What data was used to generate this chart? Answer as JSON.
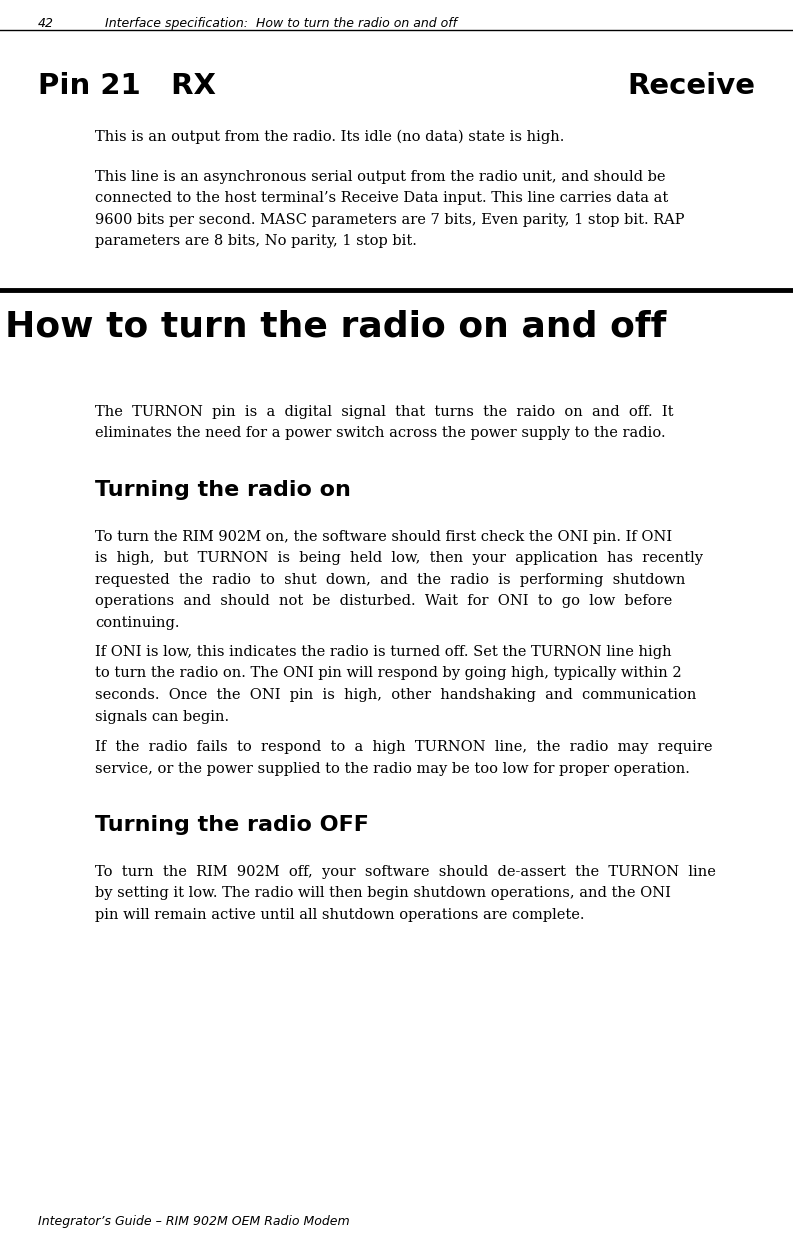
{
  "page_width": 7.93,
  "page_height": 12.55,
  "bg_color": "#ffffff",
  "footer_text": "Integrator’s Guide – RIM 902M OEM Radio Modem",
  "para1": "This is an output from the radio. Its idle (no data) state is high.",
  "p2_lines": [
    "This line is an asynchronous serial output from the radio unit, and should be",
    "connected to the host terminal’s Receive Data input. This line carries data at",
    "9600 bits per second. MASC parameters are 7 bits, Even parity, 1 stop bit. RAP",
    "parameters are 8 bits, No parity, 1 stop bit."
  ],
  "section_title": "How to turn the radio on and off",
  "intro_lines": [
    "The  TURNON  pin  is  a  digital  signal  that  turns  the  raido  on  and  off.  It",
    "eliminates the need for a power switch across the power supply to the radio."
  ],
  "sub1_title": "Turning the radio on",
  "s1p1_lines": [
    "To turn the RIM 902M on, the software should first check the ONI pin. If ONI",
    "is  high,  but  TURNON  is  being  held  low,  then  your  application  has  recently",
    "requested  the  radio  to  shut  down,  and  the  radio  is  performing  shutdown",
    "operations  and  should  not  be  disturbed.  Wait  for  ONI  to  go  low  before",
    "continuing."
  ],
  "s1p2_lines": [
    "If ONI is low, this indicates the radio is turned off. Set the TURNON line high",
    "to turn the radio on. The ONI pin will respond by going high, typically within 2",
    "seconds.  Once  the  ONI  pin  is  high,  other  handshaking  and  communication",
    "signals can begin."
  ],
  "s1p3_lines": [
    "If  the  radio  fails  to  respond  to  a  high  TURNON  line,  the  radio  may  require",
    "service, or the power supplied to the radio may be too low for proper operation."
  ],
  "sub2_title": "Turning the radio OFF",
  "s2p1_lines": [
    "To  turn  the  RIM  902M  off,  your  software  should  de-assert  the  TURNON  line",
    "by setting it low. The radio will then begin shutdown operations, and the ONI",
    "pin will remain active until all shutdown operations are complete."
  ],
  "indent": 0.95,
  "lh": 0.215,
  "body_fs": 10.5
}
